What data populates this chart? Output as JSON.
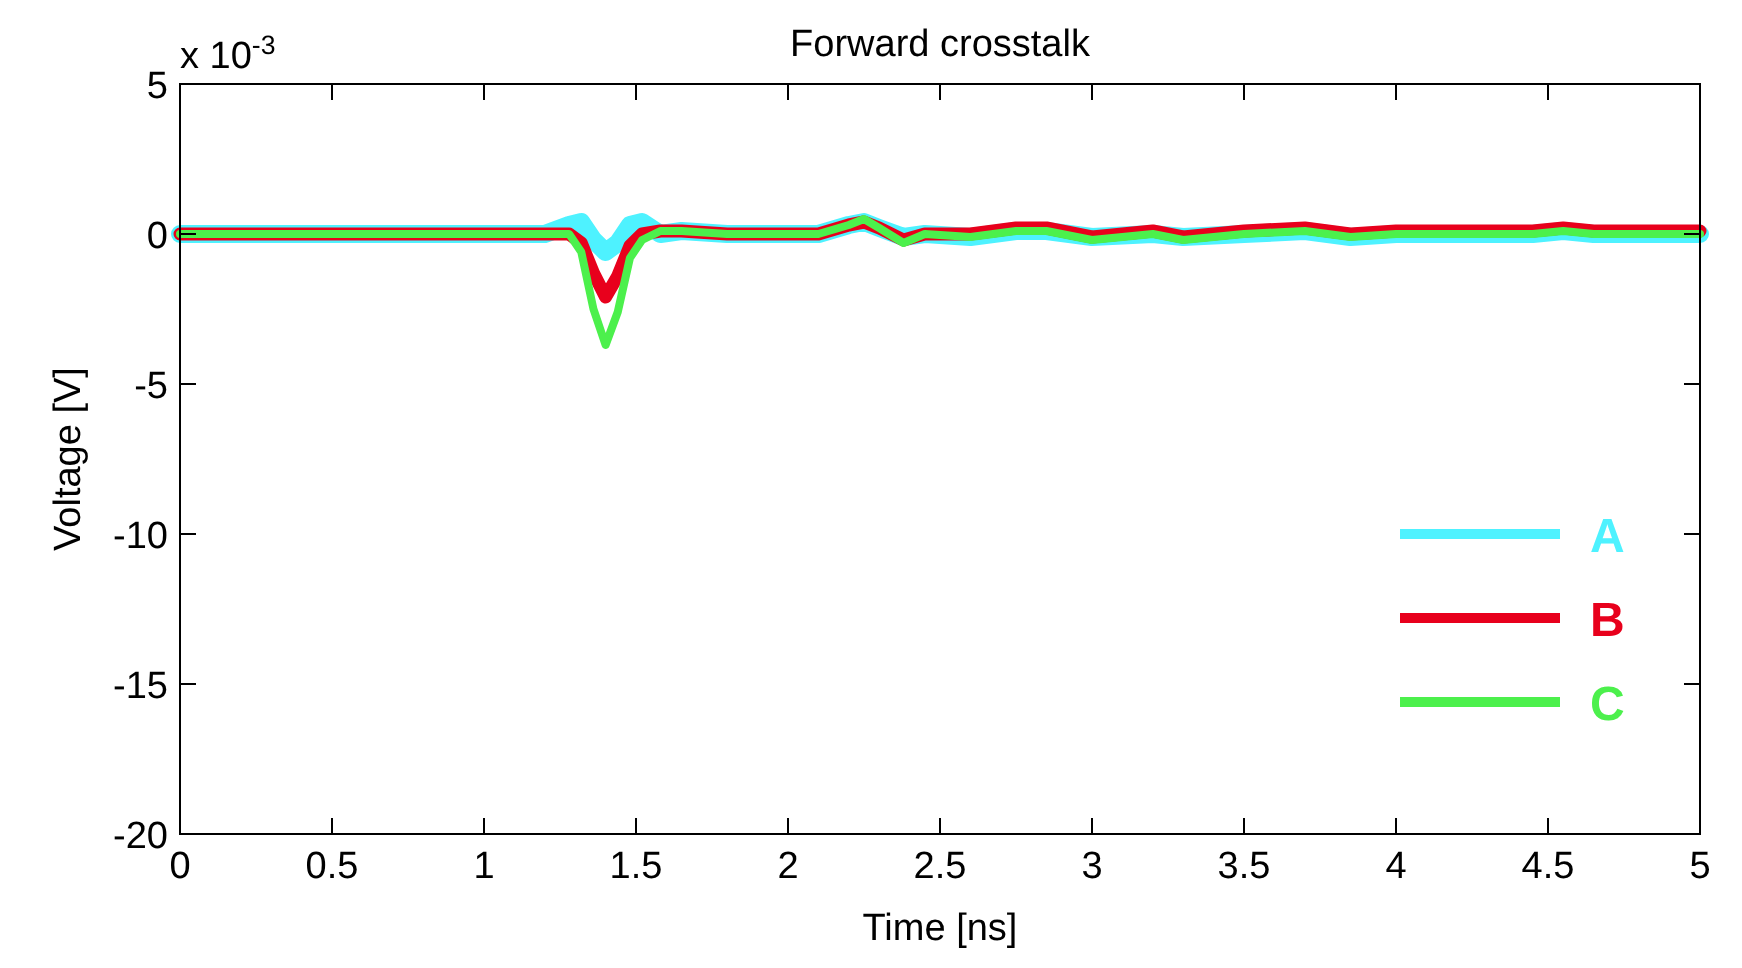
{
  "chart_data": {
    "type": "line",
    "title": "Forward crosstalk",
    "xlabel": "Time [ns]",
    "ylabel": "Voltage [V]",
    "annotations": [
      "x 10$^{-3}$"
    ],
    "x": [
      0,
      0.5,
      1.0,
      1.2,
      1.28,
      1.32,
      1.36,
      1.4,
      1.44,
      1.48,
      1.52,
      1.58,
      1.65,
      1.8,
      2.0,
      2.1,
      2.2,
      2.25,
      2.3,
      2.38,
      2.45,
      2.6,
      2.75,
      2.85,
      3.0,
      3.2,
      3.3,
      3.5,
      3.7,
      3.85,
      4.0,
      4.2,
      4.45,
      4.55,
      4.65,
      4.8,
      5.0
    ],
    "series": [
      {
        "name": "A",
        "color": "#4ef2ff",
        "values": [
          0,
          0,
          0,
          0,
          0.3,
          0.4,
          -0.2,
          -0.6,
          -0.3,
          0.3,
          0.4,
          0,
          0.1,
          0,
          0,
          0,
          0.3,
          0.4,
          0.2,
          -0.1,
          0,
          -0.1,
          0.1,
          0.1,
          -0.1,
          0,
          -0.1,
          0,
          0.1,
          -0.1,
          0,
          0,
          0,
          0.1,
          0,
          0,
          0
        ]
      },
      {
        "name": "B",
        "color": "#e8001c",
        "values": [
          0,
          0,
          0,
          0,
          0,
          -0.3,
          -1.3,
          -2.1,
          -1.4,
          -0.4,
          0,
          0.1,
          0.1,
          0,
          0,
          0,
          0.3,
          0.4,
          0.2,
          -0.2,
          0,
          0,
          0.2,
          0.2,
          -0.1,
          0.1,
          -0.1,
          0.1,
          0.2,
          0,
          0.1,
          0.1,
          0.1,
          0.2,
          0.1,
          0.1,
          0.1
        ]
      },
      {
        "name": "C",
        "color": "#4cf04c",
        "values": [
          0,
          0,
          0,
          0,
          0,
          -0.6,
          -2.5,
          -3.7,
          -2.6,
          -0.8,
          -0.2,
          0.1,
          0.1,
          0,
          0,
          0,
          0.3,
          0.5,
          0.2,
          -0.3,
          0,
          -0.1,
          0.1,
          0.1,
          -0.2,
          0,
          -0.2,
          0,
          0.1,
          -0.1,
          0,
          0,
          0,
          0.1,
          0,
          0,
          0
        ]
      }
    ],
    "xlim": [
      0,
      5
    ],
    "xticks": [
      0,
      0.5,
      1,
      1.5,
      2,
      2.5,
      3,
      3.5,
      4,
      4.5,
      5
    ],
    "ylim": [
      -20,
      5
    ],
    "yticks": [
      -20,
      -15,
      -10,
      -5,
      0,
      5
    ],
    "grid": false,
    "legend": "bottom right",
    "marker": "none",
    "line_style": "solid"
  }
}
